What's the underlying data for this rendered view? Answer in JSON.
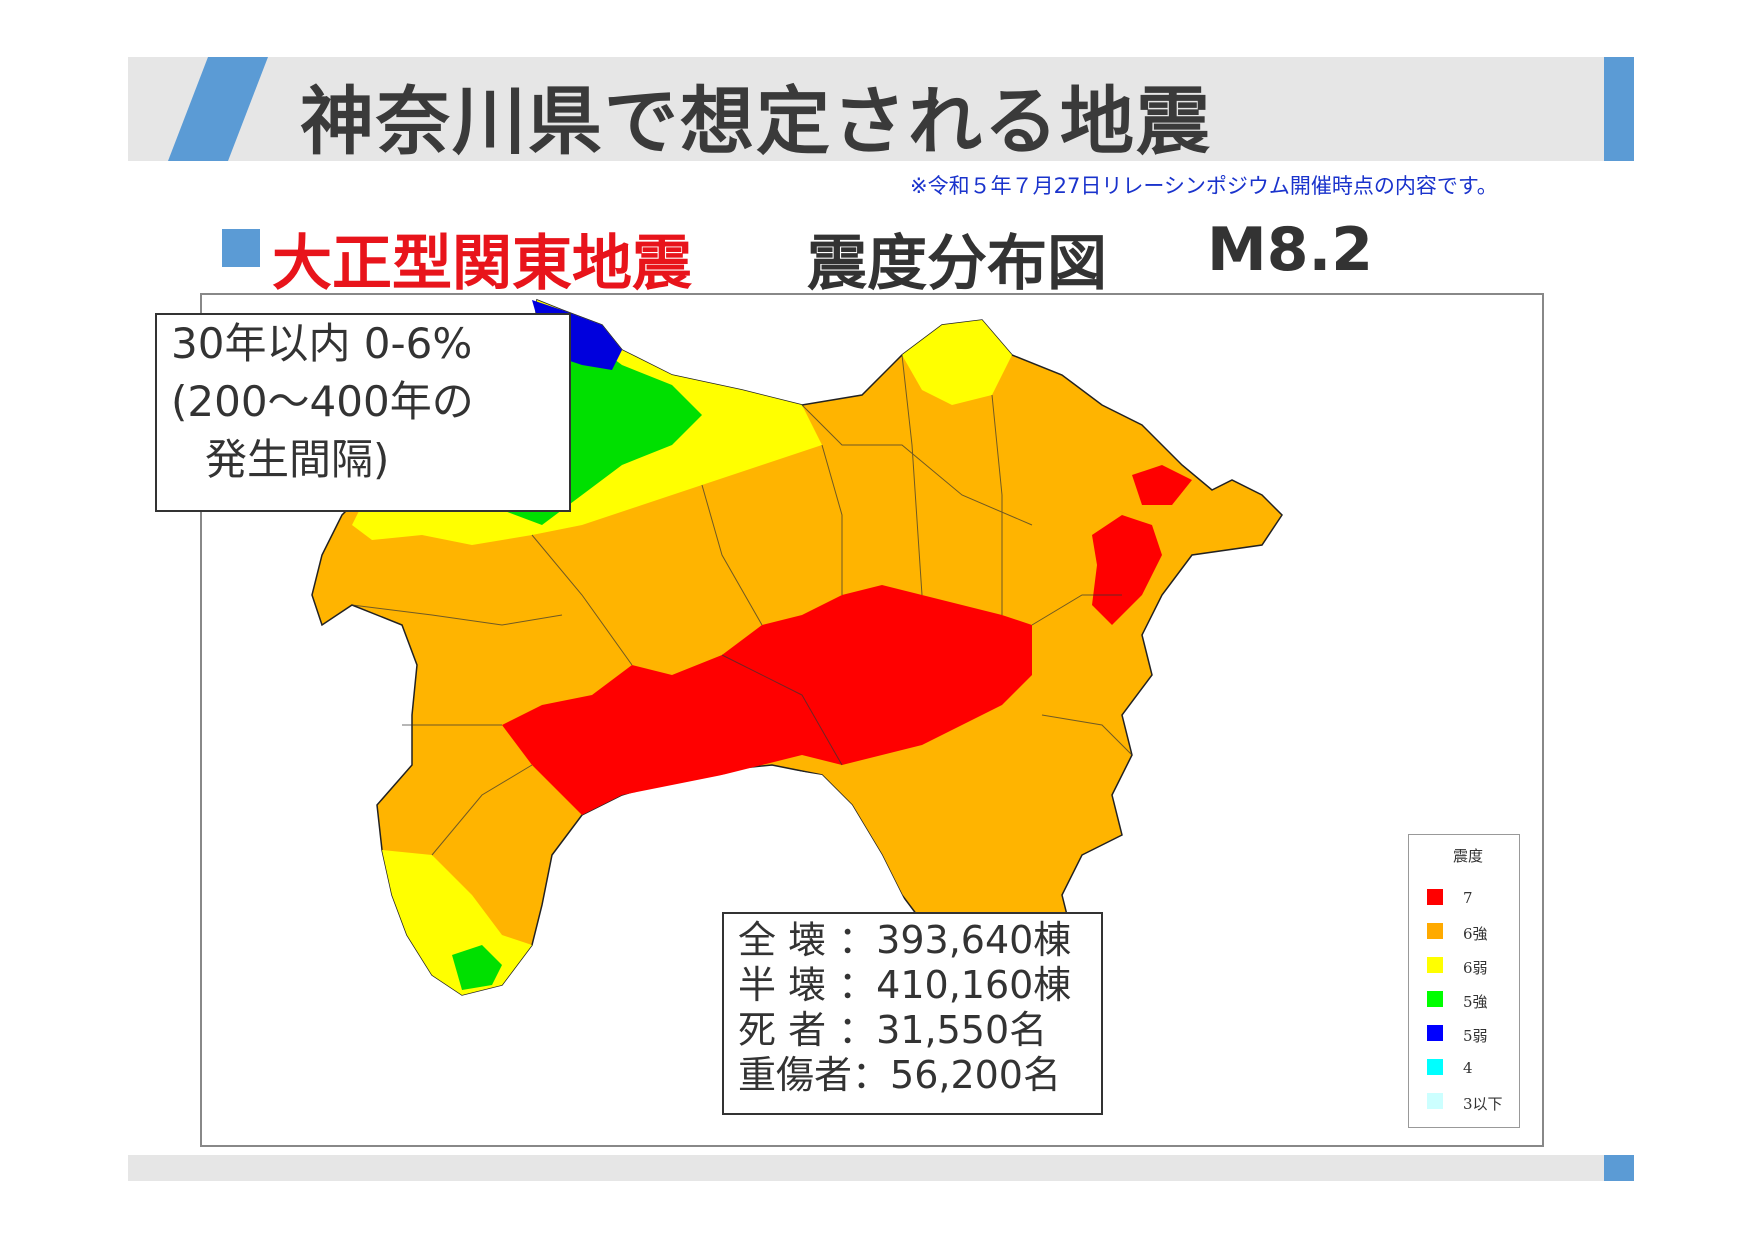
{
  "slide": {
    "title": "神奈川県で想定される地震",
    "note": "※令和５年７月27日リレーシンポジウム開催時点の内容です。",
    "subtitle_red": "大正型関東地震",
    "subtitle_dark": "震度分布図",
    "subtitle_mag": "M8.2",
    "accent_color": "#5b9bd5",
    "red_color": "#e8141b"
  },
  "probability": {
    "line1": "30年以内  0-6%",
    "line2": "(200～400年の",
    "line3": "発生間隔)"
  },
  "damage": [
    {
      "label": "全 壊 ：",
      "value": "393,640棟"
    },
    {
      "label": "半 壊 ：",
      "value": "410,160棟"
    },
    {
      "label": "死 者 ：",
      "value": "31,550名"
    },
    {
      "label": "重傷者：",
      "value": "56,200名"
    }
  ],
  "legend": {
    "title": "震度",
    "items": [
      {
        "label": "7",
        "color": "#ff0000"
      },
      {
        "label": "6強",
        "color": "#ffaa00"
      },
      {
        "label": "6弱",
        "color": "#ffff00"
      },
      {
        "label": "5強",
        "color": "#00ff00"
      },
      {
        "label": "5弱",
        "color": "#0000ff"
      },
      {
        "label": "4",
        "color": "#00ffff"
      },
      {
        "label": "3以下",
        "color": "#ccffff"
      }
    ]
  }
}
